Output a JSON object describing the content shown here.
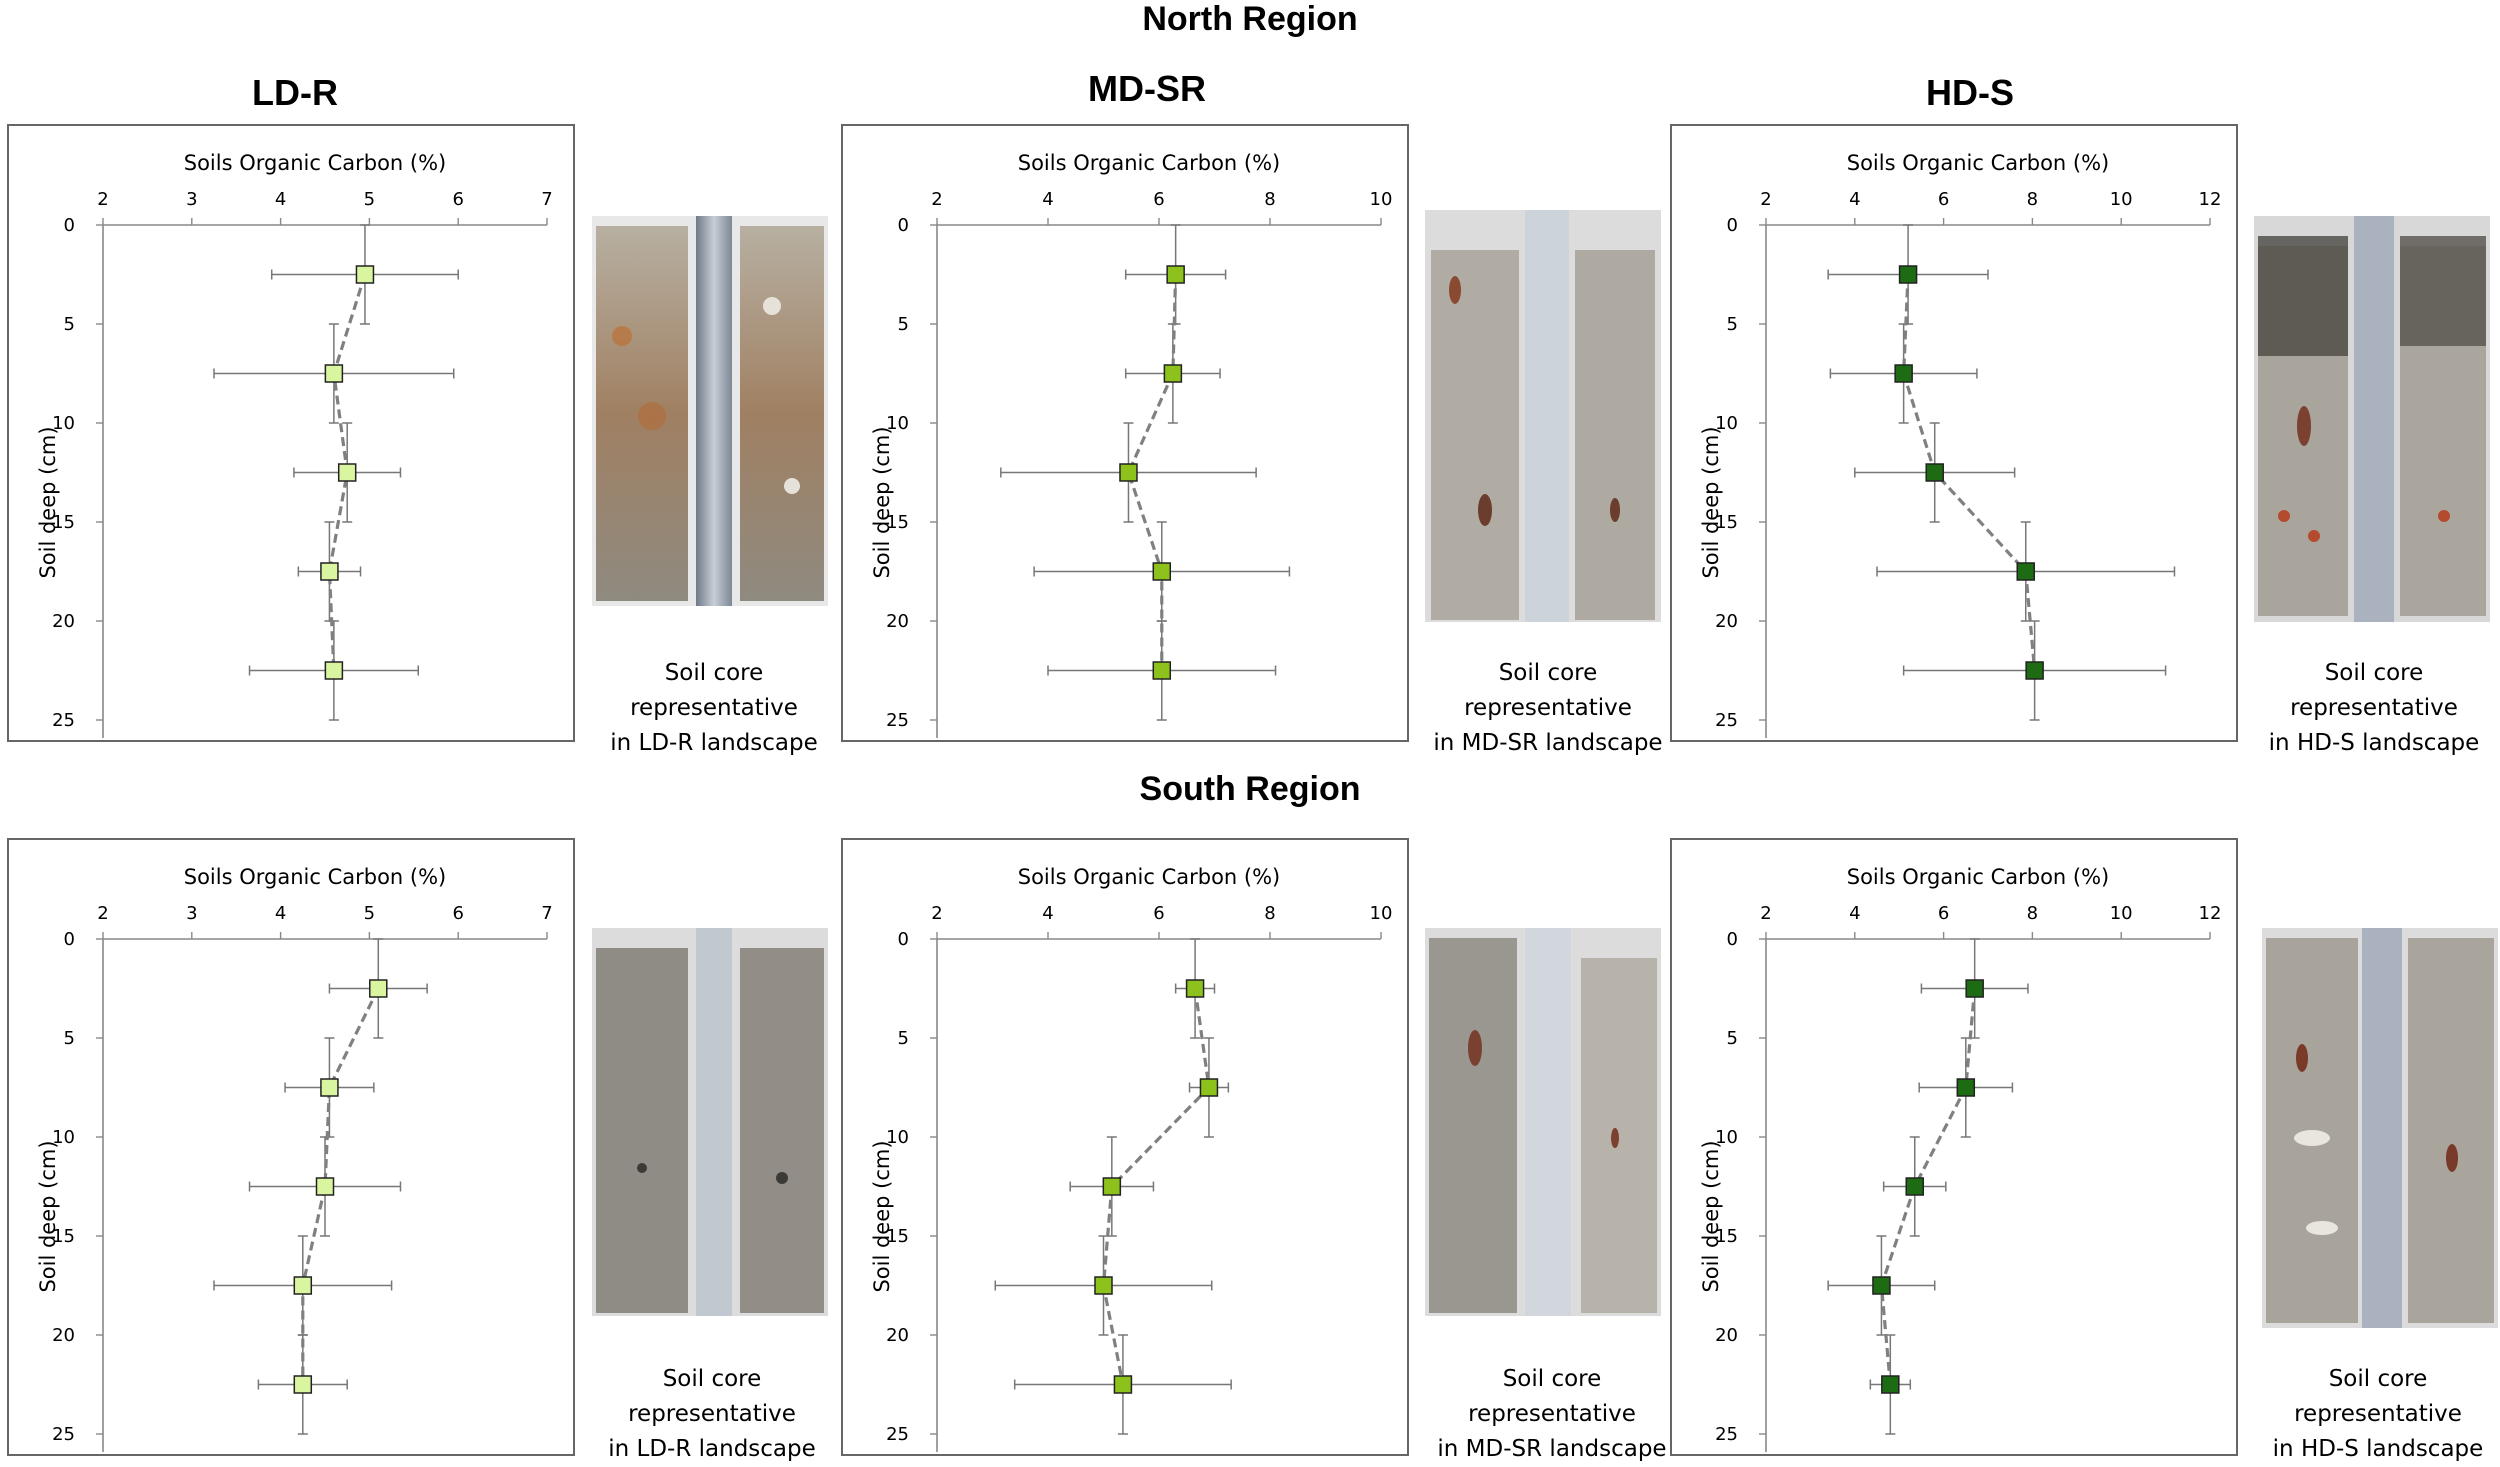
{
  "regions": [
    "North Region",
    "South Region"
  ],
  "columns": [
    "LD-R",
    "MD-SR",
    "HD-S"
  ],
  "captions": [
    "Soil core representative\nin LD-R landscape",
    "Soil core representative\nin MD-SR landscape",
    "Soil core representative\nin HD-S landscape"
  ],
  "colors": {
    "LD-R": "#d9f5a0",
    "MD-SR": "#8cc21b",
    "HD-S": "#1d6b12",
    "line": "#808080",
    "err": "#777777"
  },
  "chart_data": [
    {
      "id": "north-ld-r",
      "type": "scatter",
      "region": "North Region",
      "landscape": "LD-R",
      "xlabel": "Soils Organic Carbon (%)",
      "ylabel": "Soil deep (cm)",
      "xlim": [
        2,
        7
      ],
      "xticks": [
        2,
        3,
        4,
        5,
        6,
        7
      ],
      "ylim": [
        0,
        25
      ],
      "yticks": [
        0,
        5,
        10,
        15,
        20,
        25
      ],
      "depth": [
        2.5,
        7.5,
        12.5,
        17.5,
        22.5
      ],
      "soc": [
        4.95,
        4.6,
        4.75,
        4.55,
        4.6
      ],
      "soc_err": [
        1.05,
        1.35,
        0.6,
        0.35,
        0.95
      ],
      "depth_err": [
        2.5,
        2.5,
        2.5,
        2.5,
        2.5
      ]
    },
    {
      "id": "north-md-sr",
      "type": "scatter",
      "region": "North Region",
      "landscape": "MD-SR",
      "xlabel": "Soils Organic Carbon (%)",
      "ylabel": "Soil deep (cm)",
      "xlim": [
        2,
        10
      ],
      "xticks": [
        2,
        4,
        6,
        8,
        10
      ],
      "ylim": [
        0,
        25
      ],
      "yticks": [
        0,
        5,
        10,
        15,
        20,
        25
      ],
      "depth": [
        2.5,
        7.5,
        12.5,
        17.5,
        22.5
      ],
      "soc": [
        6.3,
        6.25,
        5.45,
        6.05,
        6.05
      ],
      "soc_err": [
        0.9,
        0.85,
        2.3,
        2.3,
        2.05
      ],
      "depth_err": [
        2.5,
        2.5,
        2.5,
        2.5,
        2.5
      ]
    },
    {
      "id": "north-hd-s",
      "type": "scatter",
      "region": "North Region",
      "landscape": "HD-S",
      "xlabel": "Soils Organic Carbon (%)",
      "ylabel": "Soil deep (cm)",
      "xlim": [
        2,
        12
      ],
      "xticks": [
        2,
        4,
        6,
        8,
        10,
        12
      ],
      "ylim": [
        0,
        25
      ],
      "yticks": [
        0,
        5,
        10,
        15,
        20,
        25
      ],
      "depth": [
        2.5,
        7.5,
        12.5,
        17.5,
        22.5
      ],
      "soc": [
        5.2,
        5.1,
        5.8,
        7.85,
        8.05
      ],
      "soc_err": [
        1.8,
        1.65,
        1.8,
        3.35,
        2.95
      ],
      "depth_err": [
        2.5,
        2.5,
        2.5,
        2.5,
        2.5
      ]
    },
    {
      "id": "south-ld-r",
      "type": "scatter",
      "region": "South Region",
      "landscape": "LD-R",
      "xlabel": "Soils Organic Carbon (%)",
      "ylabel": "Soil deep (cm)",
      "xlim": [
        2,
        7
      ],
      "xticks": [
        2,
        3,
        4,
        5,
        6,
        7
      ],
      "ylim": [
        0,
        25
      ],
      "yticks": [
        0,
        5,
        10,
        15,
        20,
        25
      ],
      "depth": [
        2.5,
        7.5,
        12.5,
        17.5,
        22.5
      ],
      "soc": [
        5.1,
        4.55,
        4.5,
        4.25,
        4.25
      ],
      "soc_err": [
        0.55,
        0.5,
        0.85,
        1.0,
        0.5
      ],
      "depth_err": [
        2.5,
        2.5,
        2.5,
        2.5,
        2.5
      ]
    },
    {
      "id": "south-md-sr",
      "type": "scatter",
      "region": "South Region",
      "landscape": "MD-SR",
      "xlabel": "Soils Organic Carbon (%)",
      "ylabel": "Soil deep (cm)",
      "xlim": [
        2,
        10
      ],
      "xticks": [
        2,
        4,
        6,
        8,
        10
      ],
      "ylim": [
        0,
        25
      ],
      "yticks": [
        0,
        5,
        10,
        15,
        20,
        25
      ],
      "depth": [
        2.5,
        7.5,
        12.5,
        17.5,
        22.5
      ],
      "soc": [
        6.65,
        6.9,
        5.15,
        5.0,
        5.35
      ],
      "soc_err": [
        0.35,
        0.35,
        0.75,
        1.95,
        1.95
      ],
      "depth_err": [
        2.5,
        2.5,
        2.5,
        2.5,
        2.5
      ]
    },
    {
      "id": "south-hd-s",
      "type": "scatter",
      "region": "South Region",
      "landscape": "HD-S",
      "xlabel": "Soils Organic Carbon (%)",
      "ylabel": "Soil deep (cm)",
      "xlim": [
        2,
        12
      ],
      "xticks": [
        2,
        4,
        6,
        8,
        10,
        12
      ],
      "ylim": [
        0,
        25
      ],
      "yticks": [
        0,
        5,
        10,
        15,
        20,
        25
      ],
      "depth": [
        2.5,
        7.5,
        12.5,
        17.5,
        22.5
      ],
      "soc": [
        6.7,
        6.5,
        5.35,
        4.6,
        4.8
      ],
      "soc_err": [
        1.2,
        1.05,
        0.7,
        1.2,
        0.45
      ],
      "depth_err": [
        2.5,
        2.5,
        2.5,
        2.5,
        2.5
      ]
    }
  ]
}
